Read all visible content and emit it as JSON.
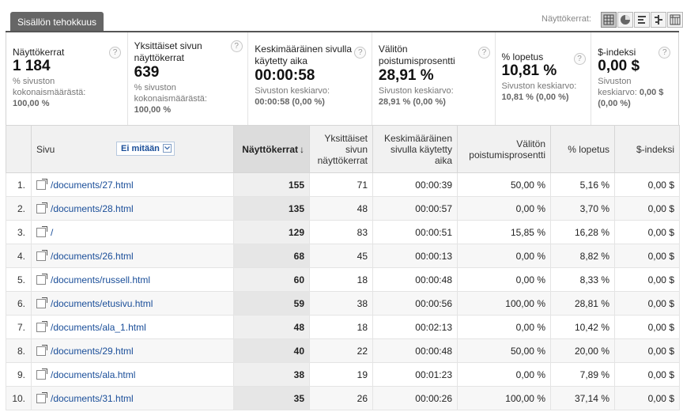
{
  "tab": {
    "label": "Sisällön tehokkuus"
  },
  "view": {
    "label": "Näyttökerrat:"
  },
  "metrics": [
    {
      "title": "Näyttökerrat",
      "value": "1 184",
      "sub1": "% sivuston",
      "sub2": "kokonaismäärästä:",
      "sub3": "100,00 %"
    },
    {
      "title": "Yksittäiset sivun näyttökerrat",
      "value": "639",
      "sub1": "% sivuston",
      "sub2": "kokonaismäärästä:",
      "sub3": "100,00 %"
    },
    {
      "title": "Keskimääräinen sivulla käytetty aika",
      "value": "00:00:58",
      "sub1": "Sivuston keskiarvo:",
      "sub2": "00:00:58 (0,00 %)"
    },
    {
      "title": "Välitön poistumisprosentti",
      "value": "28,91 %",
      "sub1": "Sivuston keskiarvo:",
      "sub2": "28,91 % (0,00 %)"
    },
    {
      "title": "% lopetus",
      "value": "10,81 %",
      "sub1": "Sivuston keskiarvo:",
      "sub2": "10,81 % (0,00 %)"
    },
    {
      "title": "$-indeksi",
      "value": "0,00 $",
      "sub1": "Sivuston",
      "sub2": "keskiarvo:",
      "sub2b": "0,00 $",
      "sub3": "(0,00 %)"
    }
  ],
  "help_glyph": "?",
  "table": {
    "headers": {
      "page": "Sivu",
      "filter": "Ei mitään",
      "views": "Näyttökerrat",
      "views_arrow": "↓",
      "unique": "Yksittäiset sivun näyttökerrat",
      "avgtime": "Keskimääräinen sivulla käytetty aika",
      "bounce": "Välitön poistumisprosentti",
      "exit": "% lopetus",
      "index": "$-indeksi"
    },
    "rows": [
      {
        "n": "1.",
        "page": "/documents/27.html",
        "views": "155",
        "unique": "71",
        "time": "00:00:39",
        "bounce": "50,00 %",
        "exit": "5,16 %",
        "index": "0,00 $"
      },
      {
        "n": "2.",
        "page": "/documents/28.html",
        "views": "135",
        "unique": "48",
        "time": "00:00:57",
        "bounce": "0,00 %",
        "exit": "3,70 %",
        "index": "0,00 $"
      },
      {
        "n": "3.",
        "page": "/",
        "views": "129",
        "unique": "83",
        "time": "00:00:51",
        "bounce": "15,85 %",
        "exit": "16,28 %",
        "index": "0,00 $"
      },
      {
        "n": "4.",
        "page": "/documents/26.html",
        "views": "68",
        "unique": "45",
        "time": "00:00:13",
        "bounce": "0,00 %",
        "exit": "8,82 %",
        "index": "0,00 $"
      },
      {
        "n": "5.",
        "page": "/documents/russell.html",
        "views": "60",
        "unique": "18",
        "time": "00:00:48",
        "bounce": "0,00 %",
        "exit": "8,33 %",
        "index": "0,00 $"
      },
      {
        "n": "6.",
        "page": "/documents/etusivu.html",
        "views": "59",
        "unique": "38",
        "time": "00:00:56",
        "bounce": "100,00 %",
        "exit": "28,81 %",
        "index": "0,00 $"
      },
      {
        "n": "7.",
        "page": "/documents/ala_1.html",
        "views": "48",
        "unique": "18",
        "time": "00:02:13",
        "bounce": "0,00 %",
        "exit": "10,42 %",
        "index": "0,00 $"
      },
      {
        "n": "8.",
        "page": "/documents/29.html",
        "views": "40",
        "unique": "22",
        "time": "00:00:48",
        "bounce": "50,00 %",
        "exit": "20,00 %",
        "index": "0,00 $"
      },
      {
        "n": "9.",
        "page": "/documents/ala.html",
        "views": "38",
        "unique": "19",
        "time": "00:01:23",
        "bounce": "0,00 %",
        "exit": "7,89 %",
        "index": "0,00 $"
      },
      {
        "n": "10.",
        "page": "/documents/31.html",
        "views": "35",
        "unique": "26",
        "time": "00:00:26",
        "bounce": "100,00 %",
        "exit": "37,14 %",
        "index": "0,00 $"
      }
    ]
  }
}
